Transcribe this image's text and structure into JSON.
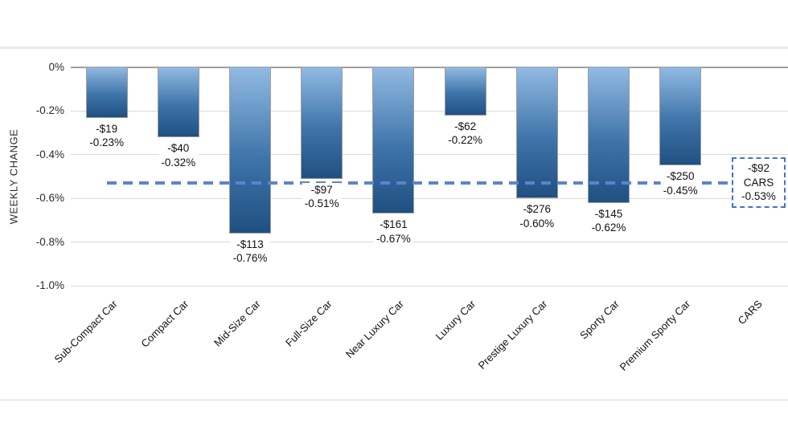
{
  "chart_data": {
    "type": "bar",
    "title": "",
    "xlabel": "",
    "ylabel": "WEEKLY CHANGE",
    "ylim": [
      -1.0,
      0
    ],
    "grid": true,
    "legend": false,
    "y_ticks": [
      {
        "label": "0%",
        "value": 0
      },
      {
        "label": "-0.2%",
        "value": -0.2
      },
      {
        "label": "-0.4%",
        "value": -0.4
      },
      {
        "label": "-0.6%",
        "value": -0.6
      },
      {
        "label": "-0.8%",
        "value": -0.8
      },
      {
        "label": "-1.0%",
        "value": -1.0
      }
    ],
    "bars": [
      {
        "category": "Sub-Compact Car",
        "dollar_label": "-$19",
        "dollar_value": -19,
        "percent": -0.23,
        "percent_label": "-0.23%"
      },
      {
        "category": "Compact Car",
        "dollar_label": "-$40",
        "dollar_value": -40,
        "percent": -0.32,
        "percent_label": "-0.32%"
      },
      {
        "category": "Mid-Size Car",
        "dollar_label": "-$113",
        "dollar_value": -113,
        "percent": -0.76,
        "percent_label": "-0.76%"
      },
      {
        "category": "Full-Size Car",
        "dollar_label": "-$97",
        "dollar_value": -97,
        "percent": -0.51,
        "percent_label": "-0.51%"
      },
      {
        "category": "Near Luxury Car",
        "dollar_label": "-$161",
        "dollar_value": -161,
        "percent": -0.67,
        "percent_label": "-0.67%"
      },
      {
        "category": "Luxury Car",
        "dollar_label": "-$62",
        "dollar_value": -62,
        "percent": -0.22,
        "percent_label": "-0.22%"
      },
      {
        "category": "Prestige Luxury Car",
        "dollar_label": "-$276",
        "dollar_value": -276,
        "percent": -0.6,
        "percent_label": "-0.60%"
      },
      {
        "category": "Sporty Car",
        "dollar_label": "-$145",
        "dollar_value": -145,
        "percent": -0.62,
        "percent_label": "-0.62%"
      },
      {
        "category": "Premium Sporty Car",
        "dollar_label": "-$250",
        "dollar_value": -250,
        "percent": -0.45,
        "percent_label": "-0.45%"
      },
      {
        "category": "CARS",
        "dollar_label": null,
        "dollar_value": null,
        "percent": null,
        "percent_label": null
      }
    ],
    "reference_line": {
      "value": -0.53,
      "color": "#5b84cd",
      "style": "dashed"
    },
    "annotation": {
      "line1": "-$92",
      "line2": "CARS",
      "line3": "-0.53%",
      "border_color": "#4472c4"
    }
  },
  "colors": {
    "bar_gradient_top": "#92bae3",
    "bar_gradient_mid": "#3e74a9",
    "bar_gradient_bottom": "#205082",
    "bar_border": "#9d9d9d",
    "gridline": "#d9d9d9",
    "zero_axis_line": "#a0a0a0",
    "divider": "#e9e9e9",
    "text": "#111111"
  }
}
